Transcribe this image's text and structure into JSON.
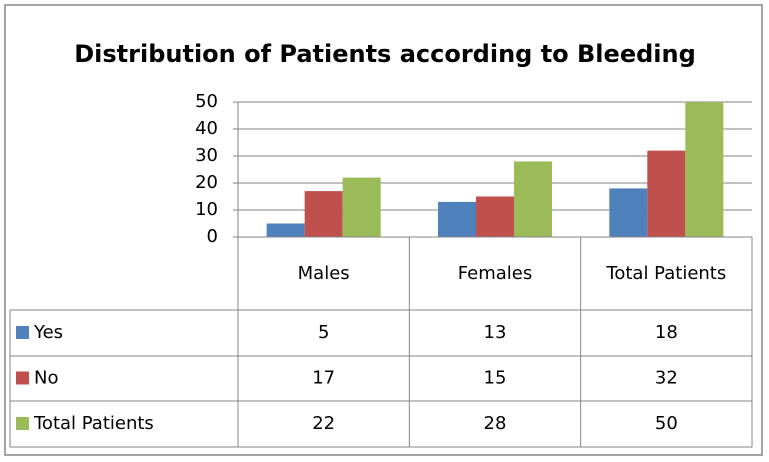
{
  "chart_data": {
    "type": "bar",
    "title": "Distribution of Patients according to Bleeding",
    "categories": [
      "Males",
      "Females",
      "Total Patients"
    ],
    "series": [
      {
        "name": "Yes",
        "color": "#4f81bd",
        "values": [
          5,
          13,
          18
        ]
      },
      {
        "name": "No",
        "color": "#c0504d",
        "values": [
          17,
          15,
          32
        ]
      },
      {
        "name": "Total Patients",
        "color": "#9bbb59",
        "values": [
          22,
          28,
          50
        ]
      }
    ],
    "ylim": [
      0,
      50
    ],
    "yticks": [
      0,
      10,
      20,
      30,
      40,
      50
    ],
    "grid": true
  }
}
